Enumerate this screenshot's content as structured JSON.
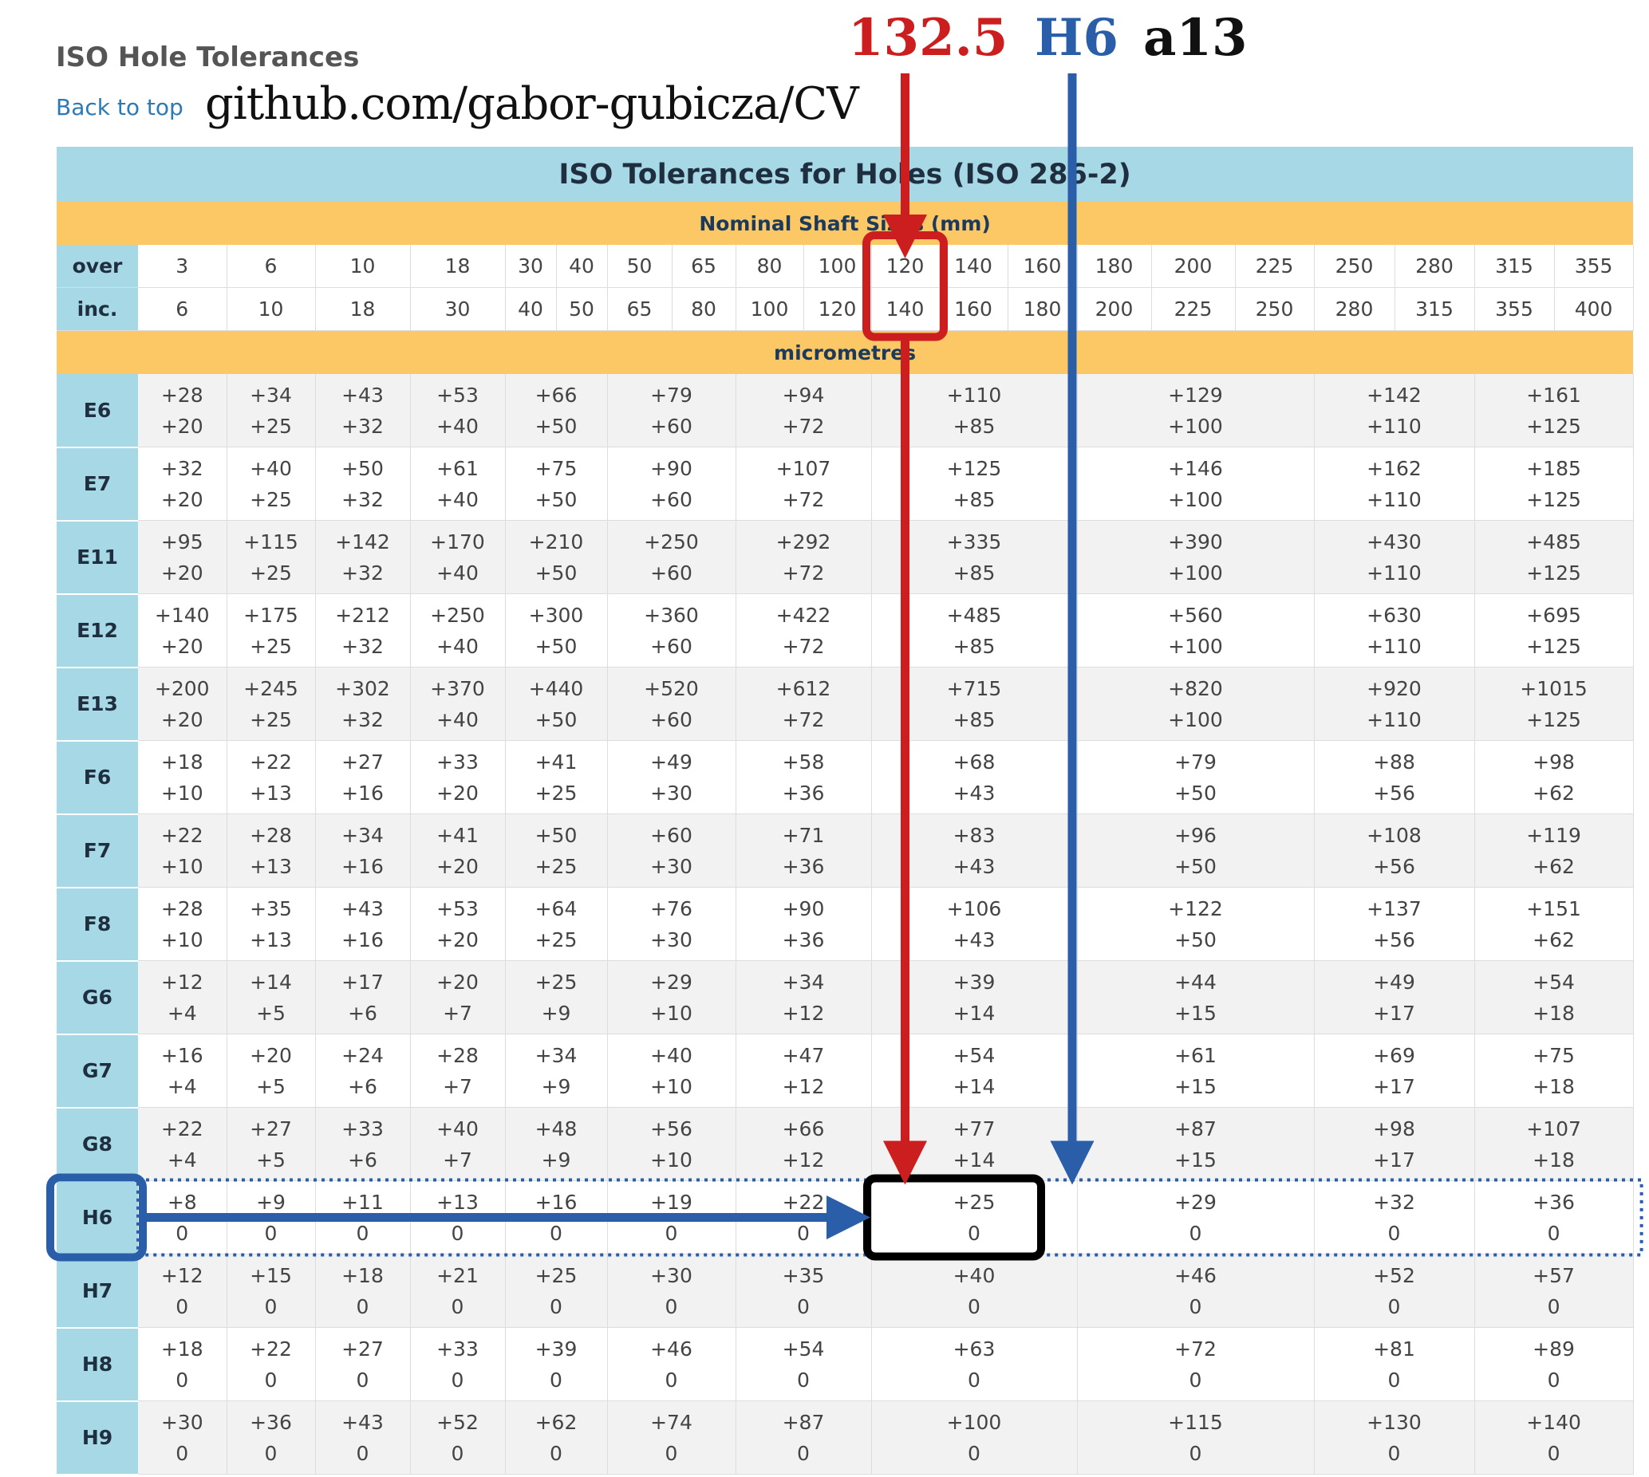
{
  "page": {
    "heading": "ISO Hole Tolerances",
    "back_link": "Back to top",
    "watermark": "github.com/gabor-gubicza/CV"
  },
  "annotations": {
    "nominal_size": "132.5",
    "hole_tolerance": "H6",
    "shaft_tolerance": "a13",
    "arrow_color_size": "#cc1e1e",
    "arrow_color_hole": "#2a5ea8"
  },
  "table": {
    "title": "ISO Tolerances for Holes (ISO 286-2)",
    "sizes_band": "Nominal Shaft Sizes (mm)",
    "units_band": "micrometres",
    "over_label": "over",
    "inc_label": "inc.",
    "over": [
      "3",
      "6",
      "10",
      "18",
      "30",
      "40",
      "50",
      "65",
      "80",
      "100",
      "120",
      "140",
      "160",
      "180",
      "200",
      "225",
      "250",
      "280",
      "315",
      "355"
    ],
    "inc": [
      "6",
      "10",
      "18",
      "30",
      "40",
      "50",
      "65",
      "80",
      "100",
      "120",
      "140",
      "160",
      "180",
      "200",
      "225",
      "250",
      "280",
      "315",
      "355",
      "400"
    ],
    "highlighted_size_column": 10,
    "highlighted_grade": "H6",
    "grades": [
      {
        "name": "E6",
        "cells": [
          [
            "+28",
            "+20"
          ],
          [
            "+34",
            "+25"
          ],
          [
            "+43",
            "+32"
          ],
          [
            "+53",
            "+40"
          ],
          [
            "+66",
            "+50"
          ],
          [
            "+79",
            "+60"
          ],
          [
            "+94",
            "+72"
          ],
          [
            "+110",
            "+85"
          ],
          [
            "+129",
            "+100"
          ],
          [
            "+142",
            "+110"
          ],
          [
            "+161",
            "+125"
          ]
        ]
      },
      {
        "name": "E7",
        "cells": [
          [
            "+32",
            "+20"
          ],
          [
            "+40",
            "+25"
          ],
          [
            "+50",
            "+32"
          ],
          [
            "+61",
            "+40"
          ],
          [
            "+75",
            "+50"
          ],
          [
            "+90",
            "+60"
          ],
          [
            "+107",
            "+72"
          ],
          [
            "+125",
            "+85"
          ],
          [
            "+146",
            "+100"
          ],
          [
            "+162",
            "+110"
          ],
          [
            "+185",
            "+125"
          ]
        ]
      },
      {
        "name": "E11",
        "cells": [
          [
            "+95",
            "+20"
          ],
          [
            "+115",
            "+25"
          ],
          [
            "+142",
            "+32"
          ],
          [
            "+170",
            "+40"
          ],
          [
            "+210",
            "+50"
          ],
          [
            "+250",
            "+60"
          ],
          [
            "+292",
            "+72"
          ],
          [
            "+335",
            "+85"
          ],
          [
            "+390",
            "+100"
          ],
          [
            "+430",
            "+110"
          ],
          [
            "+485",
            "+125"
          ]
        ]
      },
      {
        "name": "E12",
        "cells": [
          [
            "+140",
            "+20"
          ],
          [
            "+175",
            "+25"
          ],
          [
            "+212",
            "+32"
          ],
          [
            "+250",
            "+40"
          ],
          [
            "+300",
            "+50"
          ],
          [
            "+360",
            "+60"
          ],
          [
            "+422",
            "+72"
          ],
          [
            "+485",
            "+85"
          ],
          [
            "+560",
            "+100"
          ],
          [
            "+630",
            "+110"
          ],
          [
            "+695",
            "+125"
          ]
        ]
      },
      {
        "name": "E13",
        "cells": [
          [
            "+200",
            "+20"
          ],
          [
            "+245",
            "+25"
          ],
          [
            "+302",
            "+32"
          ],
          [
            "+370",
            "+40"
          ],
          [
            "+440",
            "+50"
          ],
          [
            "+520",
            "+60"
          ],
          [
            "+612",
            "+72"
          ],
          [
            "+715",
            "+85"
          ],
          [
            "+820",
            "+100"
          ],
          [
            "+920",
            "+110"
          ],
          [
            "+1015",
            "+125"
          ]
        ]
      },
      {
        "name": "F6",
        "cells": [
          [
            "+18",
            "+10"
          ],
          [
            "+22",
            "+13"
          ],
          [
            "+27",
            "+16"
          ],
          [
            "+33",
            "+20"
          ],
          [
            "+41",
            "+25"
          ],
          [
            "+49",
            "+30"
          ],
          [
            "+58",
            "+36"
          ],
          [
            "+68",
            "+43"
          ],
          [
            "+79",
            "+50"
          ],
          [
            "+88",
            "+56"
          ],
          [
            "+98",
            "+62"
          ]
        ]
      },
      {
        "name": "F7",
        "cells": [
          [
            "+22",
            "+10"
          ],
          [
            "+28",
            "+13"
          ],
          [
            "+34",
            "+16"
          ],
          [
            "+41",
            "+20"
          ],
          [
            "+50",
            "+25"
          ],
          [
            "+60",
            "+30"
          ],
          [
            "+71",
            "+36"
          ],
          [
            "+83",
            "+43"
          ],
          [
            "+96",
            "+50"
          ],
          [
            "+108",
            "+56"
          ],
          [
            "+119",
            "+62"
          ]
        ]
      },
      {
        "name": "F8",
        "cells": [
          [
            "+28",
            "+10"
          ],
          [
            "+35",
            "+13"
          ],
          [
            "+43",
            "+16"
          ],
          [
            "+53",
            "+20"
          ],
          [
            "+64",
            "+25"
          ],
          [
            "+76",
            "+30"
          ],
          [
            "+90",
            "+36"
          ],
          [
            "+106",
            "+43"
          ],
          [
            "+122",
            "+50"
          ],
          [
            "+137",
            "+56"
          ],
          [
            "+151",
            "+62"
          ]
        ]
      },
      {
        "name": "G6",
        "cells": [
          [
            "+12",
            "+4"
          ],
          [
            "+14",
            "+5"
          ],
          [
            "+17",
            "+6"
          ],
          [
            "+20",
            "+7"
          ],
          [
            "+25",
            "+9"
          ],
          [
            "+29",
            "+10"
          ],
          [
            "+34",
            "+12"
          ],
          [
            "+39",
            "+14"
          ],
          [
            "+44",
            "+15"
          ],
          [
            "+49",
            "+17"
          ],
          [
            "+54",
            "+18"
          ]
        ]
      },
      {
        "name": "G7",
        "cells": [
          [
            "+16",
            "+4"
          ],
          [
            "+20",
            "+5"
          ],
          [
            "+24",
            "+6"
          ],
          [
            "+28",
            "+7"
          ],
          [
            "+34",
            "+9"
          ],
          [
            "+40",
            "+10"
          ],
          [
            "+47",
            "+12"
          ],
          [
            "+54",
            "+14"
          ],
          [
            "+61",
            "+15"
          ],
          [
            "+69",
            "+17"
          ],
          [
            "+75",
            "+18"
          ]
        ]
      },
      {
        "name": "G8",
        "cells": [
          [
            "+22",
            "+4"
          ],
          [
            "+27",
            "+5"
          ],
          [
            "+33",
            "+6"
          ],
          [
            "+40",
            "+7"
          ],
          [
            "+48",
            "+9"
          ],
          [
            "+56",
            "+10"
          ],
          [
            "+66",
            "+12"
          ],
          [
            "+77",
            "+14"
          ],
          [
            "+87",
            "+15"
          ],
          [
            "+98",
            "+17"
          ],
          [
            "+107",
            "+18"
          ]
        ]
      },
      {
        "name": "H6",
        "cells": [
          [
            "+8",
            "0"
          ],
          [
            "+9",
            "0"
          ],
          [
            "+11",
            "0"
          ],
          [
            "+13",
            "0"
          ],
          [
            "+16",
            "0"
          ],
          [
            "+19",
            "0"
          ],
          [
            "+22",
            "0"
          ],
          [
            "+25",
            "0"
          ],
          [
            "+29",
            "0"
          ],
          [
            "+32",
            "0"
          ],
          [
            "+36",
            "0"
          ]
        ]
      },
      {
        "name": "H7",
        "cells": [
          [
            "+12",
            "0"
          ],
          [
            "+15",
            "0"
          ],
          [
            "+18",
            "0"
          ],
          [
            "+21",
            "0"
          ],
          [
            "+25",
            "0"
          ],
          [
            "+30",
            "0"
          ],
          [
            "+35",
            "0"
          ],
          [
            "+40",
            "0"
          ],
          [
            "+46",
            "0"
          ],
          [
            "+52",
            "0"
          ],
          [
            "+57",
            "0"
          ]
        ]
      },
      {
        "name": "H8",
        "cells": [
          [
            "+18",
            "0"
          ],
          [
            "+22",
            "0"
          ],
          [
            "+27",
            "0"
          ],
          [
            "+33",
            "0"
          ],
          [
            "+39",
            "0"
          ],
          [
            "+46",
            "0"
          ],
          [
            "+54",
            "0"
          ],
          [
            "+63",
            "0"
          ],
          [
            "+72",
            "0"
          ],
          [
            "+81",
            "0"
          ],
          [
            "+89",
            "0"
          ]
        ]
      },
      {
        "name": "H9",
        "cells": [
          [
            "+30",
            "0"
          ],
          [
            "+36",
            "0"
          ],
          [
            "+43",
            "0"
          ],
          [
            "+52",
            "0"
          ],
          [
            "+62",
            "0"
          ],
          [
            "+74",
            "0"
          ],
          [
            "+87",
            "0"
          ],
          [
            "+100",
            "0"
          ],
          [
            "+115",
            "0"
          ],
          [
            "+130",
            "0"
          ],
          [
            "+140",
            "0"
          ]
        ]
      }
    ]
  }
}
